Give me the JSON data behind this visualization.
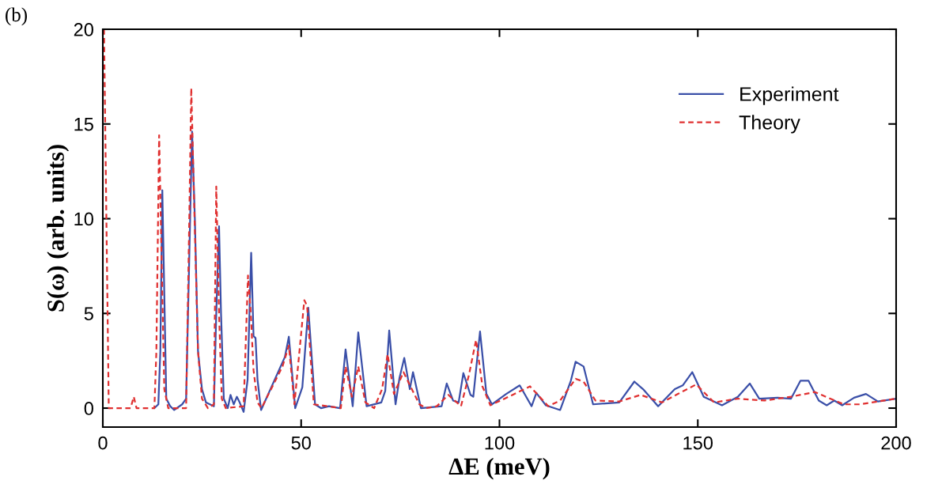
{
  "chart_data": {
    "type": "line",
    "xlabel": "ΔE (meV)",
    "ylabel": "S(ω) (arb. units)",
    "annotations": [
      "(b)"
    ],
    "xlim": [
      0,
      200
    ],
    "ylim": [
      -1,
      20
    ],
    "xticks": [
      0,
      50,
      100,
      150,
      200
    ],
    "yticks": [
      0,
      5,
      10,
      15,
      20
    ],
    "grid": false,
    "legend": "top right",
    "series": [
      {
        "name": "Experiment",
        "color": "#3a4fa8",
        "line_style": "solid",
        "x": [
          13,
          14,
          14.5,
          15,
          15.5,
          16,
          17,
          18,
          20,
          21,
          21.8,
          22.5,
          23.2,
          24,
          25,
          26,
          27,
          28,
          28.6,
          29.3,
          29.8,
          30.5,
          31.5,
          32.2,
          33,
          33.8,
          34.5,
          35.5,
          36.5,
          37.4,
          38,
          38.5,
          39,
          39.9,
          45.9,
          46.9,
          48.5,
          50.3,
          51.8,
          53.5,
          55,
          57,
          59.8,
          61.2,
          63,
          64.4,
          66.5,
          70.2,
          71.2,
          72.2,
          73.8,
          74.8,
          76,
          77.4,
          78.2,
          80.2,
          85.4,
          86.7,
          88.3,
          89.7,
          90.9,
          92.7,
          93.4,
          95.1,
          96.7,
          98.1,
          101.7,
          105.1,
          108.1,
          109.3,
          111.7,
          115.3,
          118,
          119.2,
          121.2,
          123.6,
          130.2,
          134,
          136.2,
          140,
          144.2,
          146.2,
          148.6,
          151.5,
          156.1,
          160.1,
          163.1,
          165.5,
          170.1,
          173.5,
          175.9,
          177.9,
          180.5,
          182.5,
          184.4,
          186.4,
          189.4,
          192.4,
          195.4,
          200
        ],
        "values": [
          0,
          0.2,
          3,
          11.5,
          6,
          0.5,
          0.1,
          -0.1,
          0.2,
          0.5,
          8,
          14.6,
          10,
          3,
          1,
          0.3,
          0.2,
          0.1,
          5,
          9.6,
          5,
          0.5,
          0,
          0.7,
          0.2,
          0.6,
          0.3,
          -0.2,
          1.5,
          8.2,
          3.8,
          3.7,
          1.5,
          -0.1,
          2.7,
          3.77,
          0,
          1.1,
          5.3,
          0.2,
          0,
          0.1,
          0,
          3.1,
          0.1,
          4,
          0.1,
          0.3,
          0.9,
          4.1,
          0.2,
          1.6,
          2.65,
          1,
          1.9,
          0,
          0.1,
          1.3,
          0.4,
          0.3,
          1.85,
          0.7,
          0.6,
          4.05,
          0.75,
          0.2,
          0.75,
          1.2,
          0.1,
          0.8,
          0.15,
          -0.1,
          1.45,
          2.45,
          2.2,
          0.2,
          0.3,
          1.4,
          1,
          0.1,
          1,
          1.2,
          1.9,
          0.6,
          0.15,
          0.6,
          1.3,
          0.5,
          0.55,
          0.5,
          1.45,
          1.45,
          0.4,
          0.15,
          0.4,
          0.15,
          0.55,
          0.75,
          0.35,
          0.5
        ]
      },
      {
        "name": "Theory",
        "color": "#e03030",
        "line_style": "dashed",
        "x": [
          0.3,
          1.5,
          7,
          7.8,
          8.5,
          13,
          13.5,
          14.2,
          14.8,
          15.5,
          16.5,
          21,
          21.8,
          22.3,
          23,
          24,
          25,
          26.5,
          28,
          28.6,
          29.3,
          30,
          31,
          35.5,
          36.6,
          37.3,
          38,
          39,
          40,
          45.3,
          46.9,
          48.3,
          50.8,
          51.5,
          53.2,
          60,
          61.2,
          62.8,
          64.4,
          66.2,
          68.4,
          70.4,
          71.8,
          73.4,
          75.8,
          77.8,
          79.8,
          81.5,
          84.2,
          87.1,
          90.3,
          92.3,
          94.1,
          95.7,
          97.7,
          102.3,
          107.7,
          112.3,
          115.3,
          119.2,
          121.2,
          124.2,
          130.2,
          135.6,
          141,
          145,
          149.6,
          154.1,
          160.1,
          166.8,
          173.5,
          179.5,
          186.8,
          190.8,
          195.4,
          200
        ],
        "values": [
          20,
          0,
          0,
          0.6,
          0,
          0,
          3,
          14.4,
          8,
          1,
          0,
          0,
          10,
          16.9,
          11,
          3,
          0.5,
          0,
          0.2,
          11.7,
          5,
          0.5,
          0,
          0.1,
          7,
          5,
          2,
          0.3,
          0,
          2.2,
          3.3,
          0.2,
          5.7,
          5.4,
          0.2,
          0,
          2.2,
          0.6,
          2.2,
          0.3,
          0,
          1,
          2.85,
          0.75,
          1.9,
          1.05,
          0.2,
          0,
          0.1,
          0.7,
          0.1,
          1.75,
          3.6,
          1.15,
          0.15,
          0.6,
          1.15,
          0.1,
          0.4,
          1.55,
          1.4,
          0.4,
          0.35,
          0.7,
          0.3,
          0.75,
          1.25,
          0.3,
          0.5,
          0.4,
          0.6,
          0.85,
          0.2,
          0.2,
          0.35,
          0.5
        ]
      }
    ]
  }
}
